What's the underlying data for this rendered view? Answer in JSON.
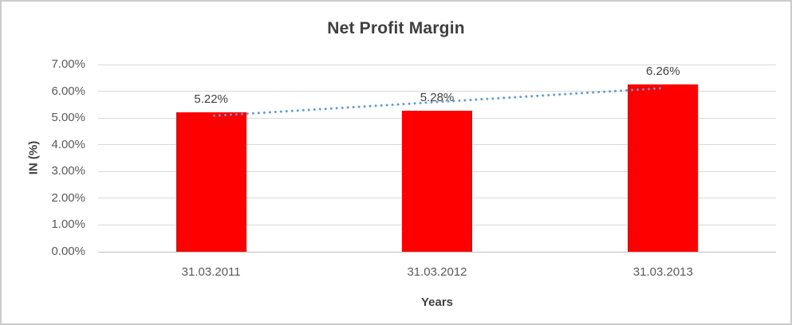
{
  "chart_data": {
    "type": "bar",
    "title": "Net Profit Margin",
    "categories": [
      "31.03.2011",
      "31.03.2012",
      "31.03.2013"
    ],
    "values": [
      5.22,
      5.28,
      6.26
    ],
    "data_labels": [
      "5.22%",
      "5.28%",
      "6.26%"
    ],
    "xlabel": "Years",
    "ylabel": "IN (%)",
    "ylim": [
      0,
      7
    ],
    "ytick_step": 1,
    "ytick_labels": [
      "0.00%",
      "1.00%",
      "2.00%",
      "3.00%",
      "4.00%",
      "5.00%",
      "6.00%",
      "7.00%"
    ],
    "grid": true,
    "legend": "none",
    "bar_color": "#ff0000",
    "trendline": {
      "type": "linear",
      "style": "dotted",
      "color": "#5b9bd5",
      "start_value": 5.07,
      "end_value": 6.11
    }
  }
}
